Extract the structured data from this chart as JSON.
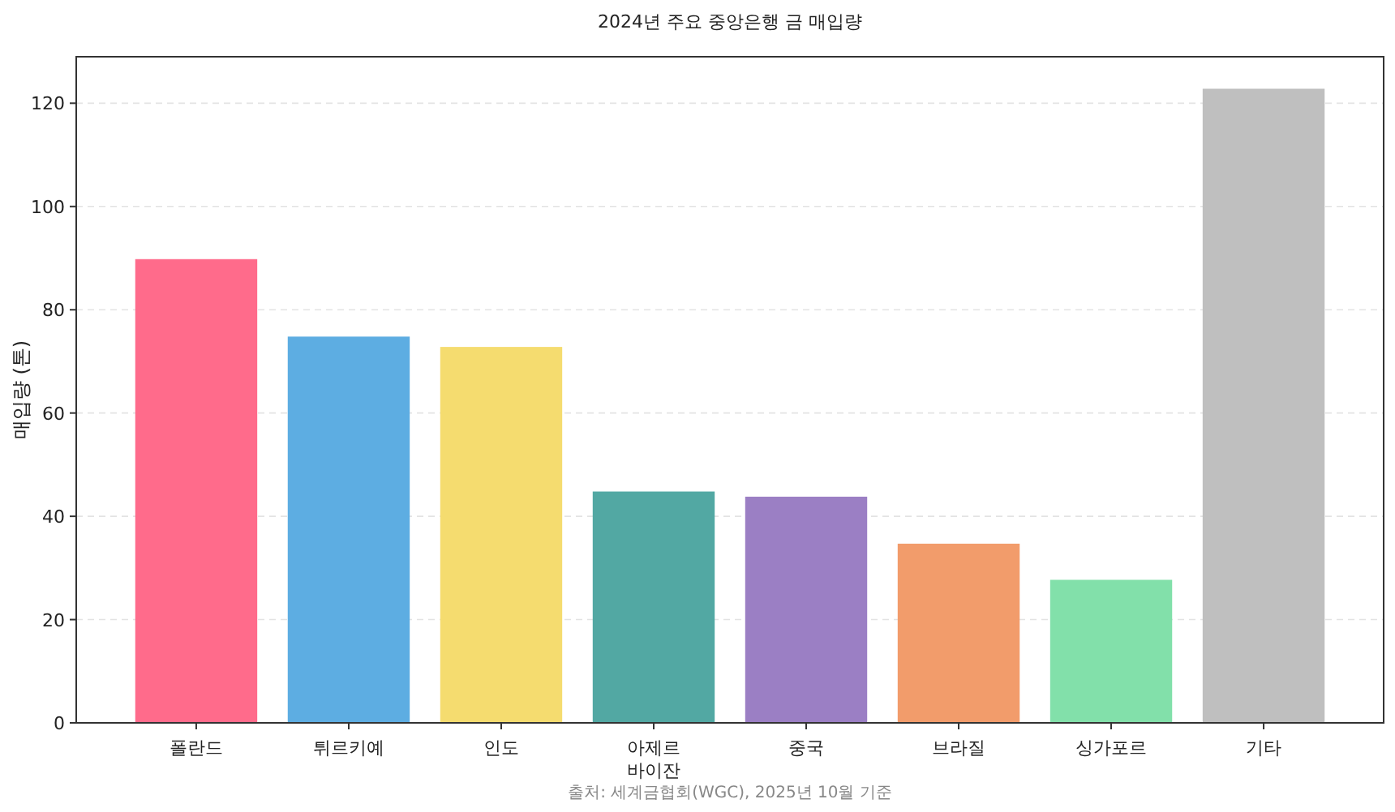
{
  "chart_data": {
    "type": "bar",
    "title": "2024년 주요 중앙은행 금 매입량",
    "ylabel": "매입량 (톤)",
    "categories": [
      "폴란드",
      "튀르키예",
      "인도",
      "아제르바이잔",
      "중국",
      "브라질",
      "싱가포르",
      "기타"
    ],
    "values": [
      89.8,
      74.8,
      72.8,
      44.8,
      43.8,
      34.7,
      27.7,
      122.8
    ],
    "colors": [
      "#ff6b8b",
      "#5dade2",
      "#f5dc6f",
      "#52a8a3",
      "#9b7fc4",
      "#f29c6b",
      "#82e0aa",
      "#bfbfbf"
    ],
    "ylim": [
      0,
      129
    ],
    "yticks": [
      0,
      20,
      40,
      60,
      80,
      100,
      120
    ],
    "grid": "y",
    "annotations": [
      "출처: 세계금협회(WGC), 2025년 10월 기준"
    ]
  }
}
